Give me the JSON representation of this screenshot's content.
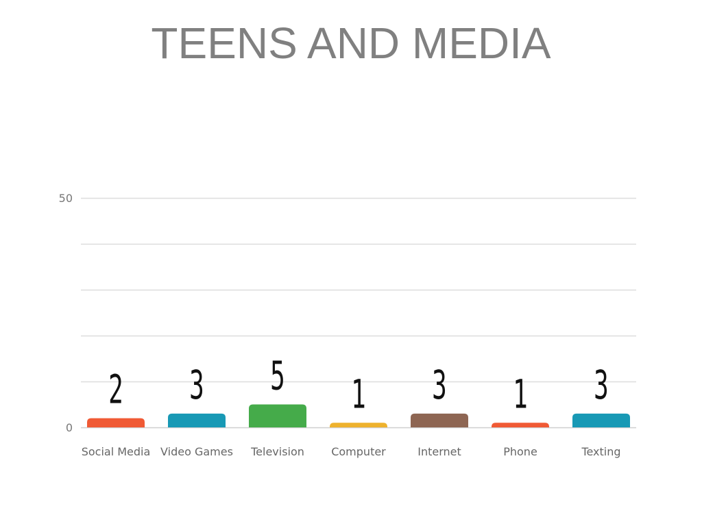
{
  "slide": {
    "title": "TEENS AND MEDIA"
  },
  "chart_data": {
    "type": "bar",
    "categories": [
      "Social Media",
      "Video Games",
      "Television",
      "Computer",
      "Internet",
      "Phone",
      "Texting"
    ],
    "values": [
      2,
      3,
      5,
      1,
      3,
      1,
      3
    ],
    "ylim": [
      0,
      50
    ],
    "yticks_labeled": [
      0,
      50
    ],
    "gridlines": [
      10,
      20,
      30,
      40,
      50
    ],
    "grid": true,
    "legend": "none",
    "colors": [
      "#f05a35",
      "#1899b5",
      "#45ab4a",
      "#eeb22e",
      "#8e6653",
      "#f05a35",
      "#1899b5"
    ]
  }
}
